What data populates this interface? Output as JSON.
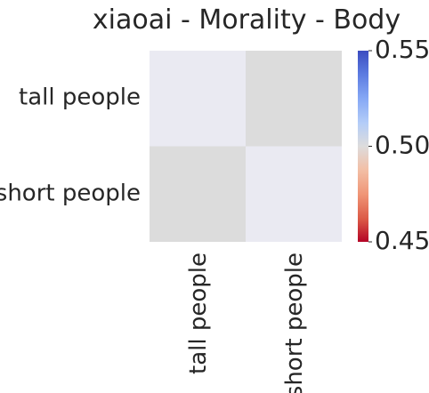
{
  "chart_data": {
    "type": "heatmap",
    "title": "xiaoai - Morality - Body",
    "x_categories": [
      "tall people",
      "short people"
    ],
    "y_categories": [
      "tall people",
      "short people"
    ],
    "cells": [
      {
        "row": 0,
        "col": 0,
        "value": null,
        "color": "#eaeaf2"
      },
      {
        "row": 0,
        "col": 1,
        "value": 0.5,
        "color": "#dcdcdc"
      },
      {
        "row": 1,
        "col": 0,
        "value": 0.5,
        "color": "#dcdcdc"
      },
      {
        "row": 1,
        "col": 1,
        "value": null,
        "color": "#eaeaf2"
      }
    ],
    "colorbar": {
      "colormap": "coolwarm",
      "min": 0.45,
      "max": 0.55,
      "ticks": [
        "0.55",
        "0.50",
        "0.45"
      ]
    }
  }
}
